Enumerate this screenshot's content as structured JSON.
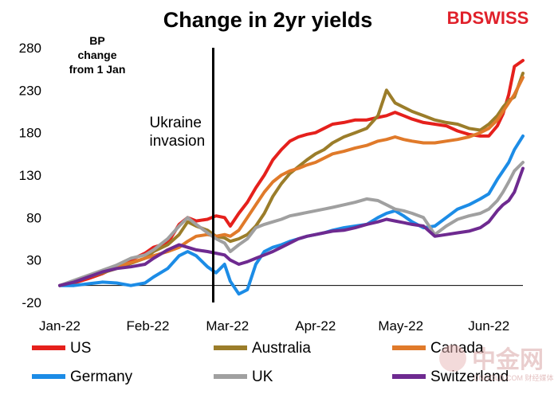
{
  "brand": {
    "prefix": "BD",
    "suffix": "SWISS",
    "prefix_color": "#e0202a",
    "suffix_color": "#e0202a"
  },
  "watermark": {
    "text": "中金网",
    "sub": "CNGOLD.COM 财经媒体"
  },
  "chart_data": {
    "type": "line",
    "title": "Change in 2yr yields",
    "unit_label": [
      "BP",
      "change",
      "from 1 Jan"
    ],
    "ylim": [
      -20,
      280
    ],
    "yticks": [
      "280",
      "230",
      "180",
      "130",
      "80",
      "30",
      "-20"
    ],
    "ytick_values": [
      280,
      230,
      180,
      130,
      80,
      30,
      -20
    ],
    "xticks": [
      "Jan-22",
      "Feb-22",
      "Mar-22",
      "Apr-22",
      "May-22",
      "Jun-22"
    ],
    "xtick_days": [
      0,
      31,
      59,
      90,
      120,
      151
    ],
    "x_range_days": [
      0,
      163
    ],
    "grid": false,
    "legend_position": "bottom",
    "annotation": {
      "text": [
        "Ukraine",
        "invasion"
      ],
      "day": 54
    },
    "series": [
      {
        "name": "US",
        "color": "#e5201c",
        "points": [
          [
            0,
            0
          ],
          [
            5,
            3
          ],
          [
            10,
            8
          ],
          [
            15,
            14
          ],
          [
            20,
            22
          ],
          [
            25,
            30
          ],
          [
            30,
            38
          ],
          [
            33,
            45
          ],
          [
            38,
            50
          ],
          [
            42,
            72
          ],
          [
            45,
            80
          ],
          [
            48,
            76
          ],
          [
            52,
            78
          ],
          [
            55,
            82
          ],
          [
            58,
            80
          ],
          [
            60,
            70
          ],
          [
            63,
            85
          ],
          [
            66,
            98
          ],
          [
            69,
            115
          ],
          [
            72,
            130
          ],
          [
            75,
            148
          ],
          [
            78,
            160
          ],
          [
            81,
            170
          ],
          [
            84,
            175
          ],
          [
            87,
            178
          ],
          [
            90,
            180
          ],
          [
            93,
            185
          ],
          [
            96,
            190
          ],
          [
            100,
            192
          ],
          [
            104,
            195
          ],
          [
            108,
            195
          ],
          [
            112,
            198
          ],
          [
            115,
            200
          ],
          [
            118,
            204
          ],
          [
            121,
            200
          ],
          [
            124,
            196
          ],
          [
            128,
            192
          ],
          [
            132,
            190
          ],
          [
            136,
            188
          ],
          [
            140,
            182
          ],
          [
            144,
            178
          ],
          [
            148,
            176
          ],
          [
            151,
            176
          ],
          [
            154,
            188
          ],
          [
            156,
            202
          ],
          [
            158,
            225
          ],
          [
            160,
            258
          ],
          [
            163,
            265
          ]
        ]
      },
      {
        "name": "Australia",
        "color": "#9b7d2a",
        "points": [
          [
            0,
            0
          ],
          [
            5,
            4
          ],
          [
            10,
            10
          ],
          [
            15,
            15
          ],
          [
            20,
            20
          ],
          [
            25,
            26
          ],
          [
            30,
            32
          ],
          [
            33,
            40
          ],
          [
            38,
            48
          ],
          [
            42,
            60
          ],
          [
            45,
            75
          ],
          [
            48,
            70
          ],
          [
            52,
            65
          ],
          [
            55,
            58
          ],
          [
            58,
            56
          ],
          [
            60,
            52
          ],
          [
            63,
            55
          ],
          [
            66,
            60
          ],
          [
            69,
            70
          ],
          [
            72,
            85
          ],
          [
            75,
            105
          ],
          [
            78,
            120
          ],
          [
            81,
            132
          ],
          [
            84,
            140
          ],
          [
            87,
            148
          ],
          [
            90,
            155
          ],
          [
            93,
            160
          ],
          [
            96,
            168
          ],
          [
            100,
            175
          ],
          [
            104,
            180
          ],
          [
            108,
            185
          ],
          [
            112,
            200
          ],
          [
            115,
            230
          ],
          [
            118,
            215
          ],
          [
            121,
            210
          ],
          [
            124,
            205
          ],
          [
            128,
            200
          ],
          [
            132,
            195
          ],
          [
            136,
            192
          ],
          [
            140,
            190
          ],
          [
            144,
            185
          ],
          [
            148,
            183
          ],
          [
            151,
            190
          ],
          [
            154,
            200
          ],
          [
            156,
            210
          ],
          [
            158,
            218
          ],
          [
            160,
            222
          ],
          [
            163,
            250
          ]
        ]
      },
      {
        "name": "Canada",
        "color": "#e07a2a",
        "points": [
          [
            0,
            0
          ],
          [
            5,
            5
          ],
          [
            10,
            10
          ],
          [
            15,
            16
          ],
          [
            20,
            22
          ],
          [
            25,
            27
          ],
          [
            30,
            32
          ],
          [
            33,
            35
          ],
          [
            38,
            40
          ],
          [
            42,
            45
          ],
          [
            45,
            52
          ],
          [
            48,
            58
          ],
          [
            52,
            60
          ],
          [
            55,
            58
          ],
          [
            58,
            60
          ],
          [
            60,
            58
          ],
          [
            63,
            65
          ],
          [
            66,
            80
          ],
          [
            69,
            95
          ],
          [
            72,
            110
          ],
          [
            75,
            122
          ],
          [
            78,
            130
          ],
          [
            81,
            135
          ],
          [
            84,
            138
          ],
          [
            87,
            142
          ],
          [
            90,
            145
          ],
          [
            93,
            150
          ],
          [
            96,
            155
          ],
          [
            100,
            158
          ],
          [
            104,
            162
          ],
          [
            108,
            165
          ],
          [
            112,
            170
          ],
          [
            115,
            172
          ],
          [
            118,
            175
          ],
          [
            121,
            172
          ],
          [
            124,
            170
          ],
          [
            128,
            168
          ],
          [
            132,
            168
          ],
          [
            136,
            170
          ],
          [
            140,
            172
          ],
          [
            144,
            175
          ],
          [
            148,
            180
          ],
          [
            151,
            185
          ],
          [
            154,
            195
          ],
          [
            156,
            205
          ],
          [
            158,
            215
          ],
          [
            160,
            225
          ],
          [
            163,
            245
          ]
        ]
      },
      {
        "name": "Germany",
        "color": "#1c8ce6",
        "points": [
          [
            0,
            0
          ],
          [
            5,
            0
          ],
          [
            10,
            2
          ],
          [
            15,
            4
          ],
          [
            20,
            3
          ],
          [
            25,
            0
          ],
          [
            30,
            3
          ],
          [
            33,
            10
          ],
          [
            38,
            20
          ],
          [
            42,
            35
          ],
          [
            45,
            40
          ],
          [
            48,
            35
          ],
          [
            52,
            22
          ],
          [
            55,
            15
          ],
          [
            58,
            25
          ],
          [
            60,
            5
          ],
          [
            63,
            -10
          ],
          [
            66,
            -5
          ],
          [
            69,
            25
          ],
          [
            72,
            40
          ],
          [
            75,
            45
          ],
          [
            78,
            48
          ],
          [
            81,
            52
          ],
          [
            84,
            55
          ],
          [
            87,
            58
          ],
          [
            90,
            60
          ],
          [
            93,
            62
          ],
          [
            96,
            65
          ],
          [
            100,
            68
          ],
          [
            104,
            70
          ],
          [
            108,
            72
          ],
          [
            112,
            80
          ],
          [
            115,
            85
          ],
          [
            118,
            88
          ],
          [
            121,
            82
          ],
          [
            124,
            75
          ],
          [
            128,
            68
          ],
          [
            132,
            70
          ],
          [
            136,
            80
          ],
          [
            140,
            90
          ],
          [
            144,
            95
          ],
          [
            148,
            102
          ],
          [
            151,
            108
          ],
          [
            154,
            125
          ],
          [
            156,
            135
          ],
          [
            158,
            145
          ],
          [
            160,
            160
          ],
          [
            163,
            176
          ]
        ]
      },
      {
        "name": "UK",
        "color": "#a0a0a0",
        "points": [
          [
            0,
            0
          ],
          [
            5,
            6
          ],
          [
            10,
            12
          ],
          [
            15,
            18
          ],
          [
            20,
            24
          ],
          [
            25,
            32
          ],
          [
            30,
            36
          ],
          [
            33,
            42
          ],
          [
            38,
            55
          ],
          [
            42,
            70
          ],
          [
            45,
            80
          ],
          [
            48,
            72
          ],
          [
            52,
            62
          ],
          [
            55,
            55
          ],
          [
            58,
            50
          ],
          [
            60,
            40
          ],
          [
            63,
            48
          ],
          [
            66,
            55
          ],
          [
            69,
            68
          ],
          [
            72,
            72
          ],
          [
            75,
            75
          ],
          [
            78,
            78
          ],
          [
            81,
            82
          ],
          [
            84,
            84
          ],
          [
            87,
            86
          ],
          [
            90,
            88
          ],
          [
            93,
            90
          ],
          [
            96,
            92
          ],
          [
            100,
            95
          ],
          [
            104,
            98
          ],
          [
            108,
            102
          ],
          [
            112,
            100
          ],
          [
            115,
            95
          ],
          [
            118,
            90
          ],
          [
            121,
            88
          ],
          [
            124,
            85
          ],
          [
            128,
            80
          ],
          [
            132,
            60
          ],
          [
            136,
            70
          ],
          [
            140,
            78
          ],
          [
            144,
            82
          ],
          [
            148,
            85
          ],
          [
            151,
            90
          ],
          [
            154,
            100
          ],
          [
            156,
            110
          ],
          [
            158,
            122
          ],
          [
            160,
            135
          ],
          [
            163,
            145
          ]
        ]
      },
      {
        "name": "Switzerland",
        "color": "#6e2a90",
        "points": [
          [
            0,
            0
          ],
          [
            5,
            4
          ],
          [
            10,
            10
          ],
          [
            15,
            16
          ],
          [
            20,
            20
          ],
          [
            25,
            22
          ],
          [
            30,
            25
          ],
          [
            33,
            32
          ],
          [
            38,
            42
          ],
          [
            42,
            48
          ],
          [
            45,
            45
          ],
          [
            48,
            42
          ],
          [
            52,
            40
          ],
          [
            55,
            38
          ],
          [
            58,
            36
          ],
          [
            60,
            30
          ],
          [
            63,
            25
          ],
          [
            66,
            28
          ],
          [
            69,
            32
          ],
          [
            72,
            36
          ],
          [
            75,
            40
          ],
          [
            78,
            45
          ],
          [
            81,
            50
          ],
          [
            84,
            55
          ],
          [
            87,
            58
          ],
          [
            90,
            60
          ],
          [
            93,
            62
          ],
          [
            96,
            64
          ],
          [
            100,
            65
          ],
          [
            104,
            68
          ],
          [
            108,
            72
          ],
          [
            112,
            75
          ],
          [
            115,
            78
          ],
          [
            118,
            76
          ],
          [
            121,
            74
          ],
          [
            124,
            72
          ],
          [
            128,
            70
          ],
          [
            132,
            58
          ],
          [
            136,
            60
          ],
          [
            140,
            62
          ],
          [
            144,
            64
          ],
          [
            148,
            68
          ],
          [
            151,
            75
          ],
          [
            154,
            88
          ],
          [
            156,
            95
          ],
          [
            158,
            100
          ],
          [
            160,
            110
          ],
          [
            163,
            138
          ]
        ]
      }
    ]
  }
}
